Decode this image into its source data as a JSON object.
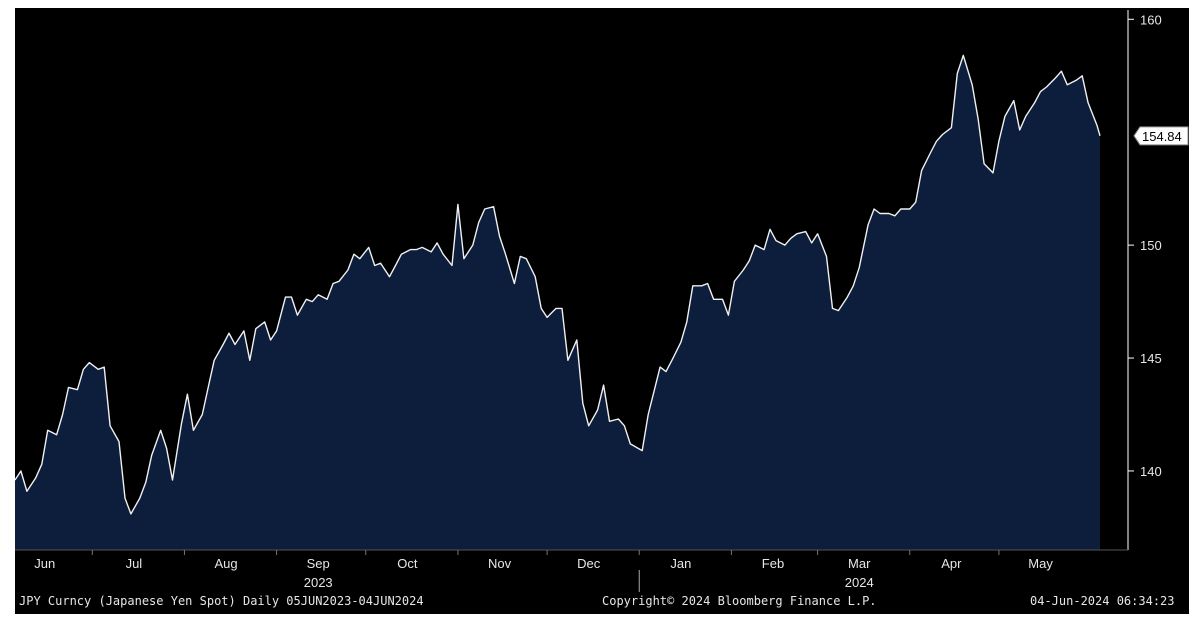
{
  "chart_data": {
    "type": "area",
    "title": "",
    "ylim": [
      136.5,
      160.5
    ],
    "y_ticks": [
      "160",
      "150",
      "145",
      "140"
    ],
    "last_value_label": "154.84",
    "x_labels": [
      {
        "text": "Jun",
        "date": "2023-06-15"
      },
      {
        "text": "Jul",
        "date": "2023-07-15"
      },
      {
        "text": "Aug",
        "date": "2023-08-15"
      },
      {
        "text": "Sep",
        "date": "2023-09-15"
      },
      {
        "text": "Oct",
        "date": "2023-10-15"
      },
      {
        "text": "Nov",
        "date": "2023-11-15"
      },
      {
        "text": "Dec",
        "date": "2023-12-15"
      },
      {
        "text": "Jan",
        "date": "2024-01-15"
      },
      {
        "text": "Feb",
        "date": "2024-02-15"
      },
      {
        "text": "Mar",
        "date": "2024-03-15"
      },
      {
        "text": "Apr",
        "date": "2024-04-15"
      },
      {
        "text": "May",
        "date": "2024-05-15"
      }
    ],
    "year_labels": [
      {
        "text": "2023",
        "date": "2023-09-15"
      },
      {
        "text": "2024",
        "date": "2024-03-15"
      }
    ],
    "series": [
      {
        "points": [
          [
            "2023-06-05",
            139.6
          ],
          [
            "2023-06-07",
            140.0
          ],
          [
            "2023-06-09",
            139.1
          ],
          [
            "2023-06-12",
            139.7
          ],
          [
            "2023-06-14",
            140.3
          ],
          [
            "2023-06-16",
            141.8
          ],
          [
            "2023-06-19",
            141.6
          ],
          [
            "2023-06-21",
            142.5
          ],
          [
            "2023-06-23",
            143.7
          ],
          [
            "2023-06-26",
            143.6
          ],
          [
            "2023-06-28",
            144.5
          ],
          [
            "2023-06-30",
            144.8
          ],
          [
            "2023-07-03",
            144.5
          ],
          [
            "2023-07-05",
            144.6
          ],
          [
            "2023-07-07",
            142.0
          ],
          [
            "2023-07-10",
            141.3
          ],
          [
            "2023-07-12",
            138.8
          ],
          [
            "2023-07-14",
            138.1
          ],
          [
            "2023-07-17",
            138.8
          ],
          [
            "2023-07-19",
            139.5
          ],
          [
            "2023-07-21",
            140.7
          ],
          [
            "2023-07-24",
            141.8
          ],
          [
            "2023-07-26",
            141.0
          ],
          [
            "2023-07-28",
            139.6
          ],
          [
            "2023-07-31",
            142.1
          ],
          [
            "2023-08-02",
            143.4
          ],
          [
            "2023-08-04",
            141.8
          ],
          [
            "2023-08-07",
            142.5
          ],
          [
            "2023-08-09",
            143.7
          ],
          [
            "2023-08-11",
            144.9
          ],
          [
            "2023-08-14",
            145.6
          ],
          [
            "2023-08-16",
            146.1
          ],
          [
            "2023-08-18",
            145.6
          ],
          [
            "2023-08-21",
            146.2
          ],
          [
            "2023-08-23",
            144.9
          ],
          [
            "2023-08-25",
            146.3
          ],
          [
            "2023-08-28",
            146.6
          ],
          [
            "2023-08-30",
            145.8
          ],
          [
            "2023-09-01",
            146.2
          ],
          [
            "2023-09-04",
            147.7
          ],
          [
            "2023-09-06",
            147.7
          ],
          [
            "2023-09-08",
            146.9
          ],
          [
            "2023-09-11",
            147.6
          ],
          [
            "2023-09-13",
            147.5
          ],
          [
            "2023-09-15",
            147.8
          ],
          [
            "2023-09-18",
            147.6
          ],
          [
            "2023-09-20",
            148.3
          ],
          [
            "2023-09-22",
            148.4
          ],
          [
            "2023-09-25",
            148.9
          ],
          [
            "2023-09-27",
            149.6
          ],
          [
            "2023-09-29",
            149.4
          ],
          [
            "2023-10-02",
            149.9
          ],
          [
            "2023-10-04",
            149.1
          ],
          [
            "2023-10-06",
            149.2
          ],
          [
            "2023-10-09",
            148.6
          ],
          [
            "2023-10-11",
            149.1
          ],
          [
            "2023-10-13",
            149.6
          ],
          [
            "2023-10-16",
            149.8
          ],
          [
            "2023-10-18",
            149.8
          ],
          [
            "2023-10-20",
            149.9
          ],
          [
            "2023-10-23",
            149.7
          ],
          [
            "2023-10-25",
            150.1
          ],
          [
            "2023-10-27",
            149.6
          ],
          [
            "2023-10-30",
            149.1
          ],
          [
            "2023-11-01",
            151.8
          ],
          [
            "2023-11-03",
            149.4
          ],
          [
            "2023-11-06",
            150.0
          ],
          [
            "2023-11-08",
            151.0
          ],
          [
            "2023-11-10",
            151.6
          ],
          [
            "2023-11-13",
            151.7
          ],
          [
            "2023-11-15",
            150.4
          ],
          [
            "2023-11-17",
            149.6
          ],
          [
            "2023-11-20",
            148.3
          ],
          [
            "2023-11-22",
            149.5
          ],
          [
            "2023-11-24",
            149.4
          ],
          [
            "2023-11-27",
            148.6
          ],
          [
            "2023-11-29",
            147.2
          ],
          [
            "2023-12-01",
            146.8
          ],
          [
            "2023-12-04",
            147.2
          ],
          [
            "2023-12-06",
            147.2
          ],
          [
            "2023-12-08",
            144.9
          ],
          [
            "2023-12-11",
            145.8
          ],
          [
            "2023-12-13",
            143.0
          ],
          [
            "2023-12-15",
            142.0
          ],
          [
            "2023-12-18",
            142.7
          ],
          [
            "2023-12-20",
            143.8
          ],
          [
            "2023-12-22",
            142.2
          ],
          [
            "2023-12-25",
            142.3
          ],
          [
            "2023-12-27",
            142.0
          ],
          [
            "2023-12-29",
            141.2
          ],
          [
            "2024-01-02",
            140.9
          ],
          [
            "2024-01-04",
            142.5
          ],
          [
            "2024-01-08",
            144.6
          ],
          [
            "2024-01-10",
            144.4
          ],
          [
            "2024-01-12",
            144.9
          ],
          [
            "2024-01-15",
            145.7
          ],
          [
            "2024-01-17",
            146.6
          ],
          [
            "2024-01-19",
            148.2
          ],
          [
            "2024-01-22",
            148.2
          ],
          [
            "2024-01-24",
            148.3
          ],
          [
            "2024-01-26",
            147.6
          ],
          [
            "2024-01-29",
            147.6
          ],
          [
            "2024-01-31",
            146.9
          ],
          [
            "2024-02-02",
            148.4
          ],
          [
            "2024-02-05",
            148.9
          ],
          [
            "2024-02-07",
            149.3
          ],
          [
            "2024-02-09",
            150.0
          ],
          [
            "2024-02-12",
            149.8
          ],
          [
            "2024-02-14",
            150.7
          ],
          [
            "2024-02-16",
            150.2
          ],
          [
            "2024-02-19",
            150.0
          ],
          [
            "2024-02-21",
            150.3
          ],
          [
            "2024-02-23",
            150.5
          ],
          [
            "2024-02-26",
            150.6
          ],
          [
            "2024-02-28",
            150.1
          ],
          [
            "2024-03-01",
            150.5
          ],
          [
            "2024-03-04",
            149.5
          ],
          [
            "2024-03-06",
            147.2
          ],
          [
            "2024-03-08",
            147.1
          ],
          [
            "2024-03-11",
            147.7
          ],
          [
            "2024-03-13",
            148.2
          ],
          [
            "2024-03-15",
            149.0
          ],
          [
            "2024-03-18",
            150.9
          ],
          [
            "2024-03-20",
            151.6
          ],
          [
            "2024-03-22",
            151.4
          ],
          [
            "2024-03-25",
            151.4
          ],
          [
            "2024-03-27",
            151.3
          ],
          [
            "2024-03-29",
            151.6
          ],
          [
            "2024-04-01",
            151.6
          ],
          [
            "2024-04-03",
            151.9
          ],
          [
            "2024-04-05",
            153.3
          ],
          [
            "2024-04-08",
            154.1
          ],
          [
            "2024-04-10",
            154.6
          ],
          [
            "2024-04-12",
            154.9
          ],
          [
            "2024-04-15",
            155.2
          ],
          [
            "2024-04-17",
            157.6
          ],
          [
            "2024-04-19",
            158.4
          ],
          [
            "2024-04-22",
            157.1
          ],
          [
            "2024-04-24",
            155.6
          ],
          [
            "2024-04-26",
            153.6
          ],
          [
            "2024-04-29",
            153.2
          ],
          [
            "2024-05-01",
            154.6
          ],
          [
            "2024-05-03",
            155.7
          ],
          [
            "2024-05-06",
            156.4
          ],
          [
            "2024-05-08",
            155.1
          ],
          [
            "2024-05-10",
            155.7
          ],
          [
            "2024-05-13",
            156.3
          ],
          [
            "2024-05-15",
            156.8
          ],
          [
            "2024-05-17",
            157.0
          ],
          [
            "2024-05-20",
            157.4
          ],
          [
            "2024-05-22",
            157.7
          ],
          [
            "2024-05-24",
            157.1
          ],
          [
            "2024-05-27",
            157.3
          ],
          [
            "2024-05-29",
            157.5
          ],
          [
            "2024-05-31",
            156.3
          ],
          [
            "2024-06-03",
            155.3
          ],
          [
            "2024-06-04",
            154.84
          ]
        ]
      }
    ]
  },
  "footer": {
    "left": "JPY Curncy (Japanese Yen Spot)  Daily 05JUN2023-04JUN2024",
    "center": "Copyright© 2024 Bloomberg Finance L.P.",
    "right": "04-Jun-2024 06:34:23"
  },
  "colors": {
    "background": "#000000",
    "area_fill": "#0d1e3c",
    "line": "#f0f0f0",
    "axis": "#ffffff",
    "text": "#e6e6e6"
  }
}
